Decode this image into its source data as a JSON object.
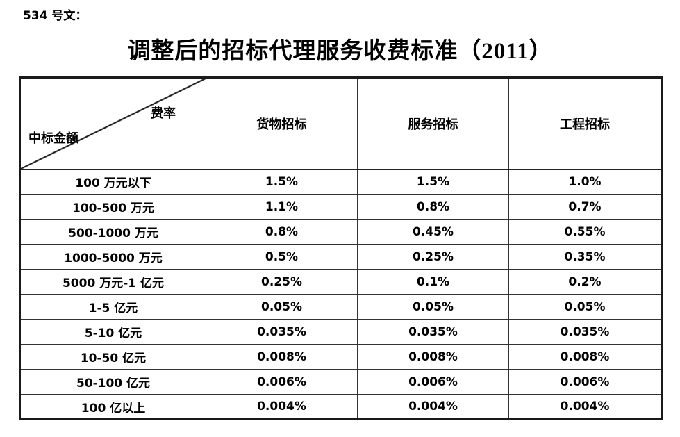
{
  "doc_label": "534 号文：",
  "title": "调整后的招标代理服务收费标准（2011）",
  "table": {
    "corner": {
      "top_right": "费率",
      "bottom_left": "中标金额"
    },
    "columns": [
      "货物招标",
      "服务招标",
      "工程招标"
    ],
    "rows": [
      {
        "label": "100 万元以下",
        "values": [
          "1.5%",
          "1.5%",
          "1.0%"
        ]
      },
      {
        "label": "100-500 万元",
        "values": [
          "1.1%",
          "0.8%",
          "0.7%"
        ]
      },
      {
        "label": "500-1000 万元",
        "values": [
          "0.8%",
          "0.45%",
          "0.55%"
        ]
      },
      {
        "label": "1000-5000 万元",
        "values": [
          "0.5%",
          "0.25%",
          "0.35%"
        ]
      },
      {
        "label": "5000 万元-1 亿元",
        "values": [
          "0.25%",
          "0.1%",
          "0.2%"
        ]
      },
      {
        "label": "1-5 亿元",
        "values": [
          "0.05%",
          "0.05%",
          "0.05%"
        ]
      },
      {
        "label": "5-10 亿元",
        "values": [
          "0.035%",
          "0.035%",
          "0.035%"
        ]
      },
      {
        "label": "10-50 亿元",
        "values": [
          "0.008%",
          "0.008%",
          "0.008%"
        ]
      },
      {
        "label": "50-100 亿元",
        "values": [
          "0.006%",
          "0.006%",
          "0.006%"
        ]
      },
      {
        "label": "100 亿以上",
        "values": [
          "0.004%",
          "0.004%",
          "0.004%"
        ]
      }
    ]
  },
  "colors": {
    "text": "#000000",
    "border": "#1a1a1a",
    "background": "#ffffff"
  }
}
